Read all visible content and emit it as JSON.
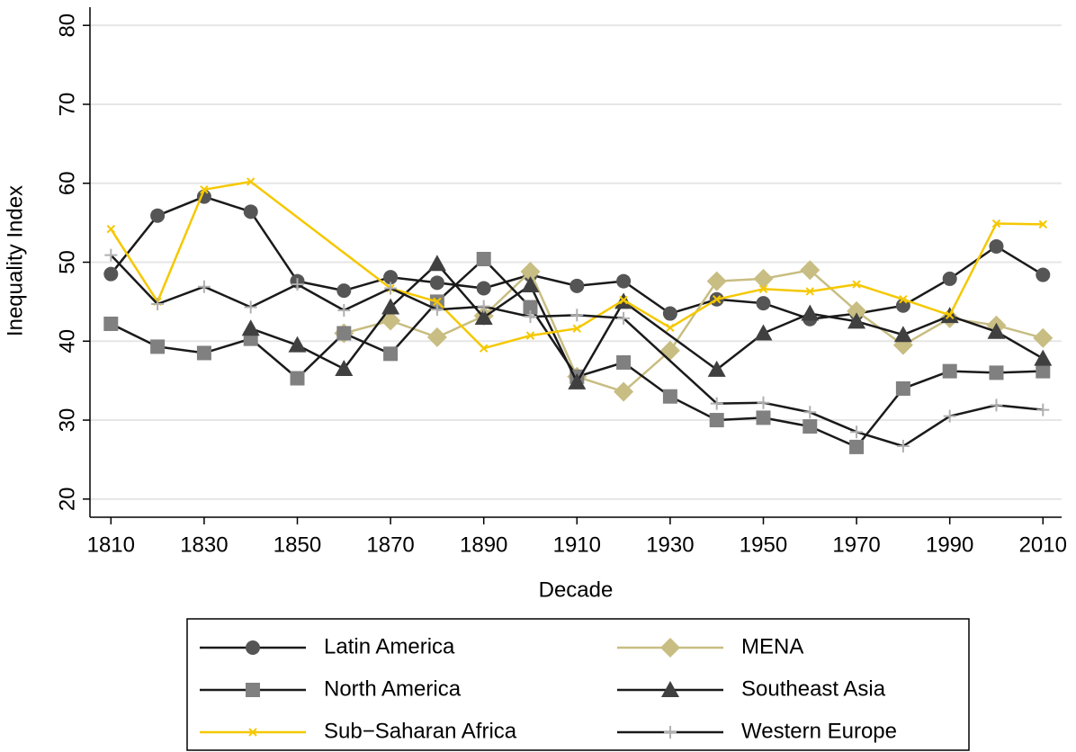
{
  "chart_data": {
    "type": "line",
    "x_label": "Decade",
    "y_label": "Inequality Index",
    "xlim": [
      1805.5,
      2014
    ],
    "xticks": [
      1810,
      1830,
      1850,
      1870,
      1890,
      1910,
      1930,
      1950,
      1970,
      1990,
      2010
    ],
    "ylim": [
      17.7,
      82.3
    ],
    "yticks": [
      20,
      30,
      40,
      50,
      60,
      70,
      80
    ],
    "grid": true,
    "legend_position": "bottom",
    "series": [
      {
        "name": "Latin America",
        "color": "#1a1a1a",
        "marker": "circle",
        "marker_color": "#555555",
        "x": [
          1810,
          1820,
          1830,
          1840,
          1850,
          1860,
          1870,
          1880,
          1890,
          1900,
          1910,
          1920,
          1930,
          1940,
          1950,
          1960,
          1970,
          1980,
          1990,
          2000,
          2010
        ],
        "values": [
          48.5,
          55.9,
          58.3,
          56.4,
          47.6,
          46.4,
          48.1,
          47.4,
          46.7,
          48.4,
          47,
          47.6,
          43.5,
          45.3,
          44.8,
          42.8,
          43.5,
          44.5,
          47.9,
          52,
          48.4
        ]
      },
      {
        "name": "MENA",
        "color": "#c8bd82",
        "marker": "diamond",
        "marker_color": "#c8bd82",
        "x": [
          1860,
          1870,
          1880,
          1890,
          1900,
          1910,
          1920,
          1930,
          1940,
          1950,
          1960,
          1970,
          1980,
          1990,
          2000,
          2010
        ],
        "values": [
          41,
          42.6,
          40.5,
          43.2,
          48.8,
          35.5,
          33.6,
          38.8,
          47.6,
          47.9,
          49,
          43.8,
          39.5,
          42.9,
          42,
          40.4
        ]
      },
      {
        "name": "North America",
        "color": "#1a1a1a",
        "marker": "square",
        "marker_color": "#808080",
        "x": [
          1810,
          1820,
          1830,
          1840,
          1850,
          1860,
          1870,
          1880,
          1890,
          1900,
          1910,
          1920,
          1930,
          1940,
          1950,
          1960,
          1970,
          1980,
          1990,
          2000,
          2010
        ],
        "values": [
          42.2,
          39.3,
          38.5,
          40.3,
          35.3,
          41,
          38.4,
          45,
          50.4,
          44.3,
          35.5,
          37.3,
          33,
          30,
          30.3,
          29.2,
          26.6,
          34,
          36.2,
          36,
          36.2
        ]
      },
      {
        "name": "Southeast Asia",
        "color": "#1a1a1a",
        "marker": "triangle",
        "marker_color": "#404040",
        "x": [
          1840,
          1850,
          1860,
          1870,
          1880,
          1890,
          1900,
          1910,
          1920,
          1940,
          1950,
          1960,
          1970,
          1980,
          1990,
          2000,
          2010
        ],
        "values": [
          41.6,
          39.5,
          36.5,
          44.3,
          49.8,
          43,
          47.1,
          34.8,
          45,
          36.4,
          41,
          43.5,
          42.5,
          40.8,
          43.2,
          41.2,
          37.8
        ]
      },
      {
        "name": "Sub−Saharan Africa",
        "color": "#f5c800",
        "marker": "x",
        "marker_color": "#f5c800",
        "x": [
          1810,
          1820,
          1830,
          1840,
          1870,
          1880,
          1890,
          1900,
          1910,
          1920,
          1930,
          1940,
          1950,
          1960,
          1970,
          1980,
          1990,
          2000,
          2010
        ],
        "values": [
          54.2,
          45,
          59.2,
          60.2,
          46.7,
          45,
          39.1,
          40.7,
          41.6,
          45.2,
          41.7,
          45.3,
          46.6,
          46.3,
          47.2,
          45.3,
          43.3,
          54.9,
          54.8
        ]
      },
      {
        "name": "Western Europe",
        "color": "#1a1a1a",
        "marker": "plus",
        "marker_color": "#b0b0b0",
        "x": [
          1810,
          1820,
          1830,
          1840,
          1850,
          1860,
          1870,
          1880,
          1890,
          1900,
          1910,
          1920,
          1940,
          1950,
          1960,
          1970,
          1980,
          1990,
          2000,
          2010
        ],
        "values": [
          50.9,
          44.7,
          46.9,
          44.3,
          47.2,
          43.9,
          46.7,
          44,
          44.4,
          43.1,
          43.3,
          42.9,
          32.1,
          32.2,
          31,
          28.5,
          26.7,
          30.5,
          31.9,
          31.3
        ]
      }
    ]
  }
}
